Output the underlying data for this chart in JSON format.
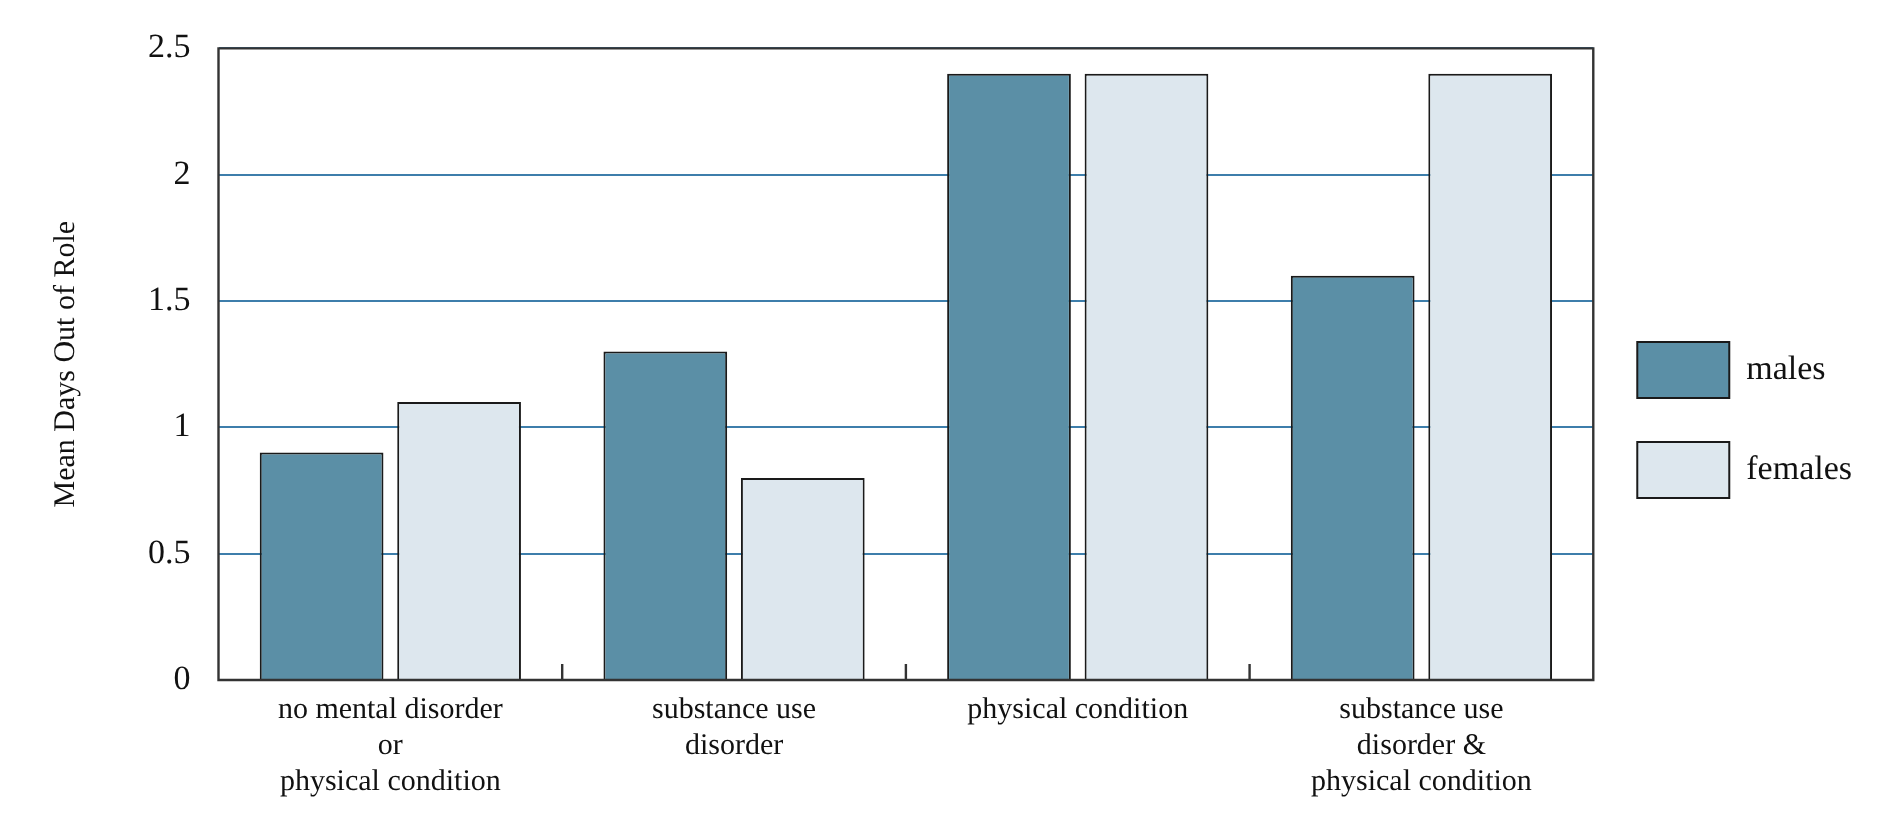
{
  "chart_data": {
    "type": "bar",
    "ylabel": "Mean Days Out of Role",
    "categories": [
      "no mental disorder\nor\nphysical condition",
      "substance use\ndisorder",
      "physical condition",
      "substance use\ndisorder &\nphysical condition"
    ],
    "series": [
      {
        "name": "males",
        "color": "#5b8fa6",
        "values": [
          0.9,
          1.3,
          2.4,
          1.6
        ]
      },
      {
        "name": "females",
        "color": "#dde7ee",
        "values": [
          1.1,
          0.8,
          2.4,
          2.4
        ]
      }
    ],
    "ylim": [
      0,
      2.5
    ],
    "yticks": [
      0,
      0.5,
      1,
      1.5,
      2,
      2.5
    ],
    "grid": "y",
    "legend": "right"
  }
}
